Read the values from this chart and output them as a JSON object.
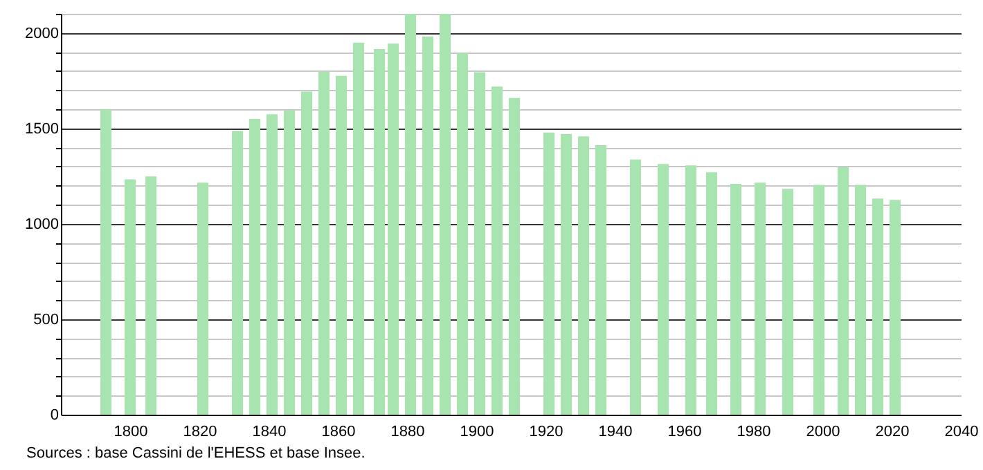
{
  "chart_data": {
    "type": "bar",
    "color": "#a8e4b0",
    "x": [
      1793,
      1800,
      1806,
      1821,
      1831,
      1836,
      1841,
      1846,
      1851,
      1856,
      1861,
      1866,
      1872,
      1876,
      1881,
      1886,
      1891,
      1896,
      1901,
      1906,
      1911,
      1921,
      1926,
      1931,
      1936,
      1946,
      1954,
      1962,
      1968,
      1975,
      1982,
      1990,
      1999,
      2006,
      2011,
      2016,
      2021
    ],
    "values": [
      1600,
      1233,
      1248,
      1216,
      1487,
      1550,
      1574,
      1596,
      1693,
      1797,
      1775,
      1949,
      1915,
      1944,
      2100,
      1981,
      2100,
      1894,
      1794,
      1719,
      1659,
      1478,
      1470,
      1458,
      1412,
      1337,
      1313,
      1306,
      1270,
      1209,
      1216,
      1183,
      1204,
      1296,
      1204,
      1132,
      1125
    ],
    "xlim": [
      1780,
      2040
    ],
    "xticks": [
      1800,
      1820,
      1840,
      1860,
      1880,
      1900,
      1920,
      1940,
      1960,
      1980,
      2000,
      2020,
      2040
    ],
    "ylim": [
      0,
      2100
    ],
    "yticks": [
      0,
      {
        "value": 100,
        "label": null
      },
      {
        "value": 200,
        "label": null
      },
      {
        "value": 300,
        "label": null
      },
      {
        "value": 400,
        "label": null
      },
      500,
      {
        "value": 600,
        "label": null
      },
      {
        "value": 700,
        "label": null
      },
      {
        "value": 800,
        "label": null
      },
      {
        "value": 900,
        "label": null
      },
      1000,
      {
        "value": 1100,
        "label": null
      },
      {
        "value": 1200,
        "label": null
      },
      {
        "value": 1300,
        "label": null
      },
      {
        "value": 1400,
        "label": null
      },
      1500,
      {
        "value": 1600,
        "label": null
      },
      {
        "value": 1700,
        "label": null
      },
      {
        "value": 1800,
        "label": null
      },
      {
        "value": 1900,
        "label": null
      },
      2000,
      {
        "value": 2100,
        "label": null
      }
    ],
    "grid": "y",
    "annotations": [
      "Sources : base Cassini de l'EHESS et base Insee."
    ]
  }
}
